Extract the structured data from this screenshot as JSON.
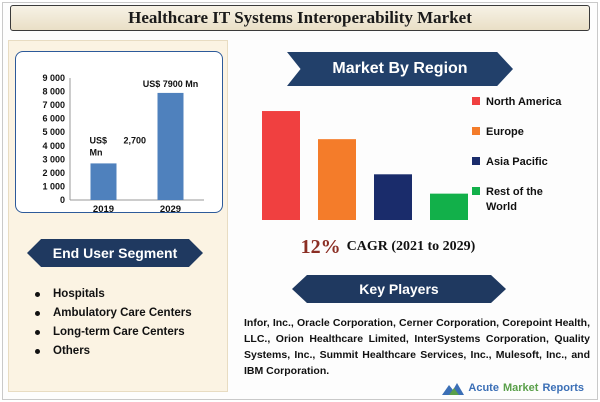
{
  "page": {
    "title": "Healthcare IT Systems Interoperability Market",
    "logo_text": {
      "acute": "Acute",
      "market": "Market",
      "reports": "Reports"
    }
  },
  "chart_data": [
    {
      "type": "bar",
      "categories": [
        "2019",
        "2029"
      ],
      "values": [
        2700,
        7900
      ],
      "ylim": [
        0,
        9000
      ],
      "yticks": [
        "0",
        "1 000",
        "2 000",
        "3 000",
        "4 000",
        "5 000",
        "6 000",
        "7 000",
        "8 000",
        "9 000"
      ],
      "data_labels": [
        {
          "line1": "US$",
          "line2": "Mn",
          "value": "2,700"
        },
        {
          "text": "US$ 7900 Mn"
        }
      ],
      "bar_color": "#4f81bd",
      "grid": false
    },
    {
      "type": "bar",
      "title": "Market By Region",
      "categories": [
        "North America",
        "Europe",
        "Asia Pacific",
        "Rest of the World"
      ],
      "values": [
        6.2,
        4.6,
        2.6,
        1.5
      ],
      "colors": [
        "#f04040",
        "#f47c2a",
        "#1a2c6b",
        "#12b04a"
      ],
      "legend": "right",
      "axes_visible": false
    }
  ],
  "cagr": {
    "value": "12%",
    "label": "CAGR (2021 to 2029)"
  },
  "end_user": {
    "title": "End User Segment",
    "items": [
      "Hospitals",
      "Ambulatory Care Centers",
      "Long-term Care Centers",
      "Others"
    ]
  },
  "key_players": {
    "title": "Key Players",
    "text": "Infor, Inc., Oracle Corporation, Cerner Corporation, Corepoint Health, LLC., Orion Healthcare Limited, InterSystems Corporation, Quality Systems, Inc., Summit Healthcare Services, Inc., Mulesoft, Inc., and IBM Corporation."
  },
  "colors": {
    "banner": "#1f3960",
    "accent": "#8b2e24",
    "panel": "#fbf3e3"
  }
}
